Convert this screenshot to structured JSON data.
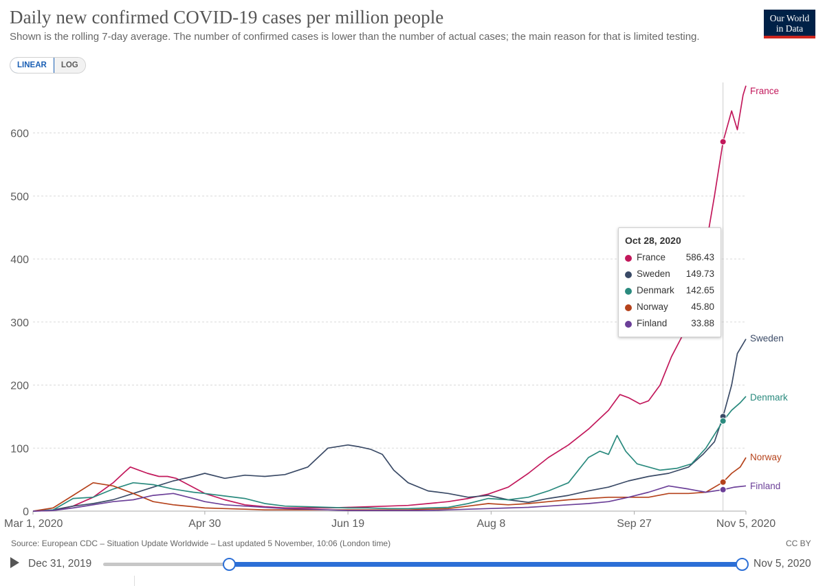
{
  "header": {
    "title": "Daily new confirmed COVID-19 cases per million people",
    "subtitle": "Shown is the rolling 7-day average. The number of confirmed cases is lower than the number of actual cases; the main reason for that is limited testing.",
    "logo_line1": "Our World",
    "logo_line2": "in Data"
  },
  "scale_toggle": {
    "linear": "LINEAR",
    "log": "LOG",
    "selected": "LINEAR"
  },
  "tooltip": {
    "date": "Oct 28, 2020",
    "rows": [
      {
        "name": "France",
        "value": "586.43"
      },
      {
        "name": "Sweden",
        "value": "149.73"
      },
      {
        "name": "Denmark",
        "value": "142.65"
      },
      {
        "name": "Norway",
        "value": "45.80"
      },
      {
        "name": "Finland",
        "value": "33.88"
      }
    ]
  },
  "footer": {
    "source": "Source: European CDC – Situation Update Worldwide – Last updated 5 November, 10:06 (London time)",
    "license": "CC BY"
  },
  "timeline": {
    "start": "Dec 31, 2019",
    "end": "Nov 5, 2020"
  },
  "colors": {
    "France": "#c2185b",
    "Sweden": "#3a4a66",
    "Denmark": "#2a8a7e",
    "Norway": "#b5421b",
    "Finland": "#6b3f98",
    "grid": "#d9d9d9",
    "axis": "#5b5b5b"
  },
  "chart_data": {
    "type": "line",
    "title": "Daily new confirmed COVID-19 cases per million people",
    "ylim": [
      0,
      680
    ],
    "yticks": [
      0,
      100,
      200,
      300,
      400,
      500,
      600
    ],
    "xdomain": [
      "2020-03-01",
      "2020-11-05"
    ],
    "xticks": [
      {
        "date": "2020-03-01",
        "label": "Mar 1, 2020"
      },
      {
        "date": "2020-04-30",
        "label": "Apr 30"
      },
      {
        "date": "2020-06-19",
        "label": "Jun 19"
      },
      {
        "date": "2020-08-08",
        "label": "Aug 8"
      },
      {
        "date": "2020-09-27",
        "label": "Sep 27"
      },
      {
        "date": "2020-11-05",
        "label": "Nov 5, 2020"
      }
    ],
    "hover_date": "2020-10-28",
    "series": [
      {
        "name": "France",
        "points": [
          [
            "2020-03-01",
            0
          ],
          [
            "2020-03-08",
            1
          ],
          [
            "2020-03-15",
            8
          ],
          [
            "2020-03-22",
            22
          ],
          [
            "2020-03-29",
            45
          ],
          [
            "2020-04-02",
            62
          ],
          [
            "2020-04-04",
            70
          ],
          [
            "2020-04-07",
            65
          ],
          [
            "2020-04-10",
            60
          ],
          [
            "2020-04-14",
            55
          ],
          [
            "2020-04-17",
            55
          ],
          [
            "2020-04-20",
            52
          ],
          [
            "2020-04-25",
            40
          ],
          [
            "2020-04-30",
            28
          ],
          [
            "2020-05-07",
            18
          ],
          [
            "2020-05-14",
            10
          ],
          [
            "2020-05-21",
            7
          ],
          [
            "2020-05-28",
            5
          ],
          [
            "2020-06-05",
            5
          ],
          [
            "2020-06-12",
            5
          ],
          [
            "2020-06-19",
            6
          ],
          [
            "2020-06-26",
            7
          ],
          [
            "2020-07-03",
            8
          ],
          [
            "2020-07-10",
            9
          ],
          [
            "2020-07-17",
            12
          ],
          [
            "2020-07-24",
            15
          ],
          [
            "2020-07-31",
            20
          ],
          [
            "2020-08-07",
            27
          ],
          [
            "2020-08-14",
            38
          ],
          [
            "2020-08-21",
            60
          ],
          [
            "2020-08-28",
            85
          ],
          [
            "2020-09-04",
            105
          ],
          [
            "2020-09-11",
            130
          ],
          [
            "2020-09-18",
            160
          ],
          [
            "2020-09-22",
            185
          ],
          [
            "2020-09-25",
            180
          ],
          [
            "2020-09-29",
            170
          ],
          [
            "2020-10-02",
            175
          ],
          [
            "2020-10-06",
            200
          ],
          [
            "2020-10-10",
            245
          ],
          [
            "2020-10-14",
            280
          ],
          [
            "2020-10-18",
            310
          ],
          [
            "2020-10-22",
            420
          ],
          [
            "2020-10-25",
            500
          ],
          [
            "2020-10-28",
            586
          ],
          [
            "2020-10-31",
            635
          ],
          [
            "2020-11-02",
            605
          ],
          [
            "2020-11-04",
            660
          ],
          [
            "2020-11-05",
            675
          ]
        ]
      },
      {
        "name": "Sweden",
        "points": [
          [
            "2020-03-01",
            0
          ],
          [
            "2020-03-08",
            2
          ],
          [
            "2020-03-15",
            8
          ],
          [
            "2020-03-22",
            12
          ],
          [
            "2020-03-29",
            18
          ],
          [
            "2020-04-05",
            28
          ],
          [
            "2020-04-12",
            38
          ],
          [
            "2020-04-19",
            48
          ],
          [
            "2020-04-26",
            55
          ],
          [
            "2020-04-30",
            60
          ],
          [
            "2020-05-07",
            52
          ],
          [
            "2020-05-14",
            57
          ],
          [
            "2020-05-21",
            55
          ],
          [
            "2020-05-28",
            58
          ],
          [
            "2020-06-05",
            70
          ],
          [
            "2020-06-12",
            100
          ],
          [
            "2020-06-19",
            105
          ],
          [
            "2020-06-23",
            102
          ],
          [
            "2020-06-27",
            98
          ],
          [
            "2020-07-01",
            90
          ],
          [
            "2020-07-05",
            65
          ],
          [
            "2020-07-10",
            45
          ],
          [
            "2020-07-17",
            32
          ],
          [
            "2020-07-24",
            28
          ],
          [
            "2020-07-31",
            22
          ],
          [
            "2020-08-07",
            25
          ],
          [
            "2020-08-14",
            18
          ],
          [
            "2020-08-21",
            14
          ],
          [
            "2020-08-28",
            20
          ],
          [
            "2020-09-04",
            25
          ],
          [
            "2020-09-11",
            32
          ],
          [
            "2020-09-18",
            38
          ],
          [
            "2020-09-25",
            48
          ],
          [
            "2020-10-02",
            55
          ],
          [
            "2020-10-09",
            60
          ],
          [
            "2020-10-16",
            70
          ],
          [
            "2020-10-21",
            90
          ],
          [
            "2020-10-25",
            110
          ],
          [
            "2020-10-28",
            150
          ],
          [
            "2020-10-31",
            200
          ],
          [
            "2020-11-02",
            250
          ],
          [
            "2020-11-05",
            273
          ]
        ]
      },
      {
        "name": "Denmark",
        "points": [
          [
            "2020-03-01",
            0
          ],
          [
            "2020-03-08",
            2
          ],
          [
            "2020-03-15",
            20
          ],
          [
            "2020-03-22",
            22
          ],
          [
            "2020-03-29",
            35
          ],
          [
            "2020-04-05",
            45
          ],
          [
            "2020-04-12",
            42
          ],
          [
            "2020-04-19",
            35
          ],
          [
            "2020-04-26",
            30
          ],
          [
            "2020-04-30",
            28
          ],
          [
            "2020-05-07",
            24
          ],
          [
            "2020-05-14",
            20
          ],
          [
            "2020-05-21",
            12
          ],
          [
            "2020-05-28",
            8
          ],
          [
            "2020-06-05",
            7
          ],
          [
            "2020-06-12",
            6
          ],
          [
            "2020-06-19",
            5
          ],
          [
            "2020-06-26",
            5
          ],
          [
            "2020-07-03",
            4
          ],
          [
            "2020-07-10",
            4
          ],
          [
            "2020-07-17",
            5
          ],
          [
            "2020-07-24",
            6
          ],
          [
            "2020-07-31",
            12
          ],
          [
            "2020-08-07",
            20
          ],
          [
            "2020-08-14",
            18
          ],
          [
            "2020-08-21",
            22
          ],
          [
            "2020-08-28",
            32
          ],
          [
            "2020-09-04",
            45
          ],
          [
            "2020-09-11",
            85
          ],
          [
            "2020-09-15",
            95
          ],
          [
            "2020-09-18",
            90
          ],
          [
            "2020-09-21",
            120
          ],
          [
            "2020-09-24",
            95
          ],
          [
            "2020-09-28",
            75
          ],
          [
            "2020-10-02",
            70
          ],
          [
            "2020-10-06",
            65
          ],
          [
            "2020-10-12",
            68
          ],
          [
            "2020-10-17",
            75
          ],
          [
            "2020-10-22",
            100
          ],
          [
            "2020-10-28",
            143
          ],
          [
            "2020-10-31",
            160
          ],
          [
            "2020-11-03",
            172
          ],
          [
            "2020-11-05",
            182
          ]
        ]
      },
      {
        "name": "Norway",
        "points": [
          [
            "2020-03-01",
            0
          ],
          [
            "2020-03-08",
            5
          ],
          [
            "2020-03-15",
            25
          ],
          [
            "2020-03-22",
            45
          ],
          [
            "2020-03-29",
            40
          ],
          [
            "2020-04-05",
            28
          ],
          [
            "2020-04-12",
            15
          ],
          [
            "2020-04-19",
            10
          ],
          [
            "2020-04-26",
            7
          ],
          [
            "2020-04-30",
            5
          ],
          [
            "2020-05-07",
            4
          ],
          [
            "2020-05-14",
            3
          ],
          [
            "2020-05-21",
            2
          ],
          [
            "2020-05-28",
            2
          ],
          [
            "2020-06-05",
            2
          ],
          [
            "2020-06-12",
            2
          ],
          [
            "2020-06-19",
            2
          ],
          [
            "2020-06-26",
            2
          ],
          [
            "2020-07-03",
            2
          ],
          [
            "2020-07-10",
            2
          ],
          [
            "2020-07-17",
            3
          ],
          [
            "2020-07-24",
            4
          ],
          [
            "2020-07-31",
            8
          ],
          [
            "2020-08-07",
            12
          ],
          [
            "2020-08-14",
            10
          ],
          [
            "2020-08-21",
            12
          ],
          [
            "2020-08-28",
            15
          ],
          [
            "2020-09-04",
            18
          ],
          [
            "2020-09-11",
            20
          ],
          [
            "2020-09-18",
            22
          ],
          [
            "2020-09-25",
            22
          ],
          [
            "2020-10-02",
            22
          ],
          [
            "2020-10-09",
            28
          ],
          [
            "2020-10-16",
            28
          ],
          [
            "2020-10-22",
            30
          ],
          [
            "2020-10-28",
            46
          ],
          [
            "2020-10-31",
            60
          ],
          [
            "2020-11-03",
            70
          ],
          [
            "2020-11-05",
            85
          ]
        ]
      },
      {
        "name": "Finland",
        "points": [
          [
            "2020-03-01",
            0
          ],
          [
            "2020-03-08",
            1
          ],
          [
            "2020-03-15",
            5
          ],
          [
            "2020-03-22",
            10
          ],
          [
            "2020-03-29",
            15
          ],
          [
            "2020-04-05",
            18
          ],
          [
            "2020-04-12",
            25
          ],
          [
            "2020-04-19",
            28
          ],
          [
            "2020-04-26",
            20
          ],
          [
            "2020-04-30",
            15
          ],
          [
            "2020-05-07",
            10
          ],
          [
            "2020-05-14",
            8
          ],
          [
            "2020-05-21",
            6
          ],
          [
            "2020-05-28",
            4
          ],
          [
            "2020-06-05",
            3
          ],
          [
            "2020-06-12",
            2
          ],
          [
            "2020-06-19",
            1
          ],
          [
            "2020-06-26",
            1
          ],
          [
            "2020-07-03",
            1
          ],
          [
            "2020-07-10",
            1
          ],
          [
            "2020-07-17",
            1
          ],
          [
            "2020-07-24",
            2
          ],
          [
            "2020-07-31",
            3
          ],
          [
            "2020-08-07",
            4
          ],
          [
            "2020-08-14",
            5
          ],
          [
            "2020-08-21",
            6
          ],
          [
            "2020-08-28",
            8
          ],
          [
            "2020-09-04",
            10
          ],
          [
            "2020-09-11",
            12
          ],
          [
            "2020-09-18",
            15
          ],
          [
            "2020-09-25",
            22
          ],
          [
            "2020-10-02",
            30
          ],
          [
            "2020-10-09",
            40
          ],
          [
            "2020-10-16",
            35
          ],
          [
            "2020-10-22",
            30
          ],
          [
            "2020-10-28",
            34
          ],
          [
            "2020-11-01",
            38
          ],
          [
            "2020-11-05",
            40
          ]
        ]
      }
    ]
  }
}
